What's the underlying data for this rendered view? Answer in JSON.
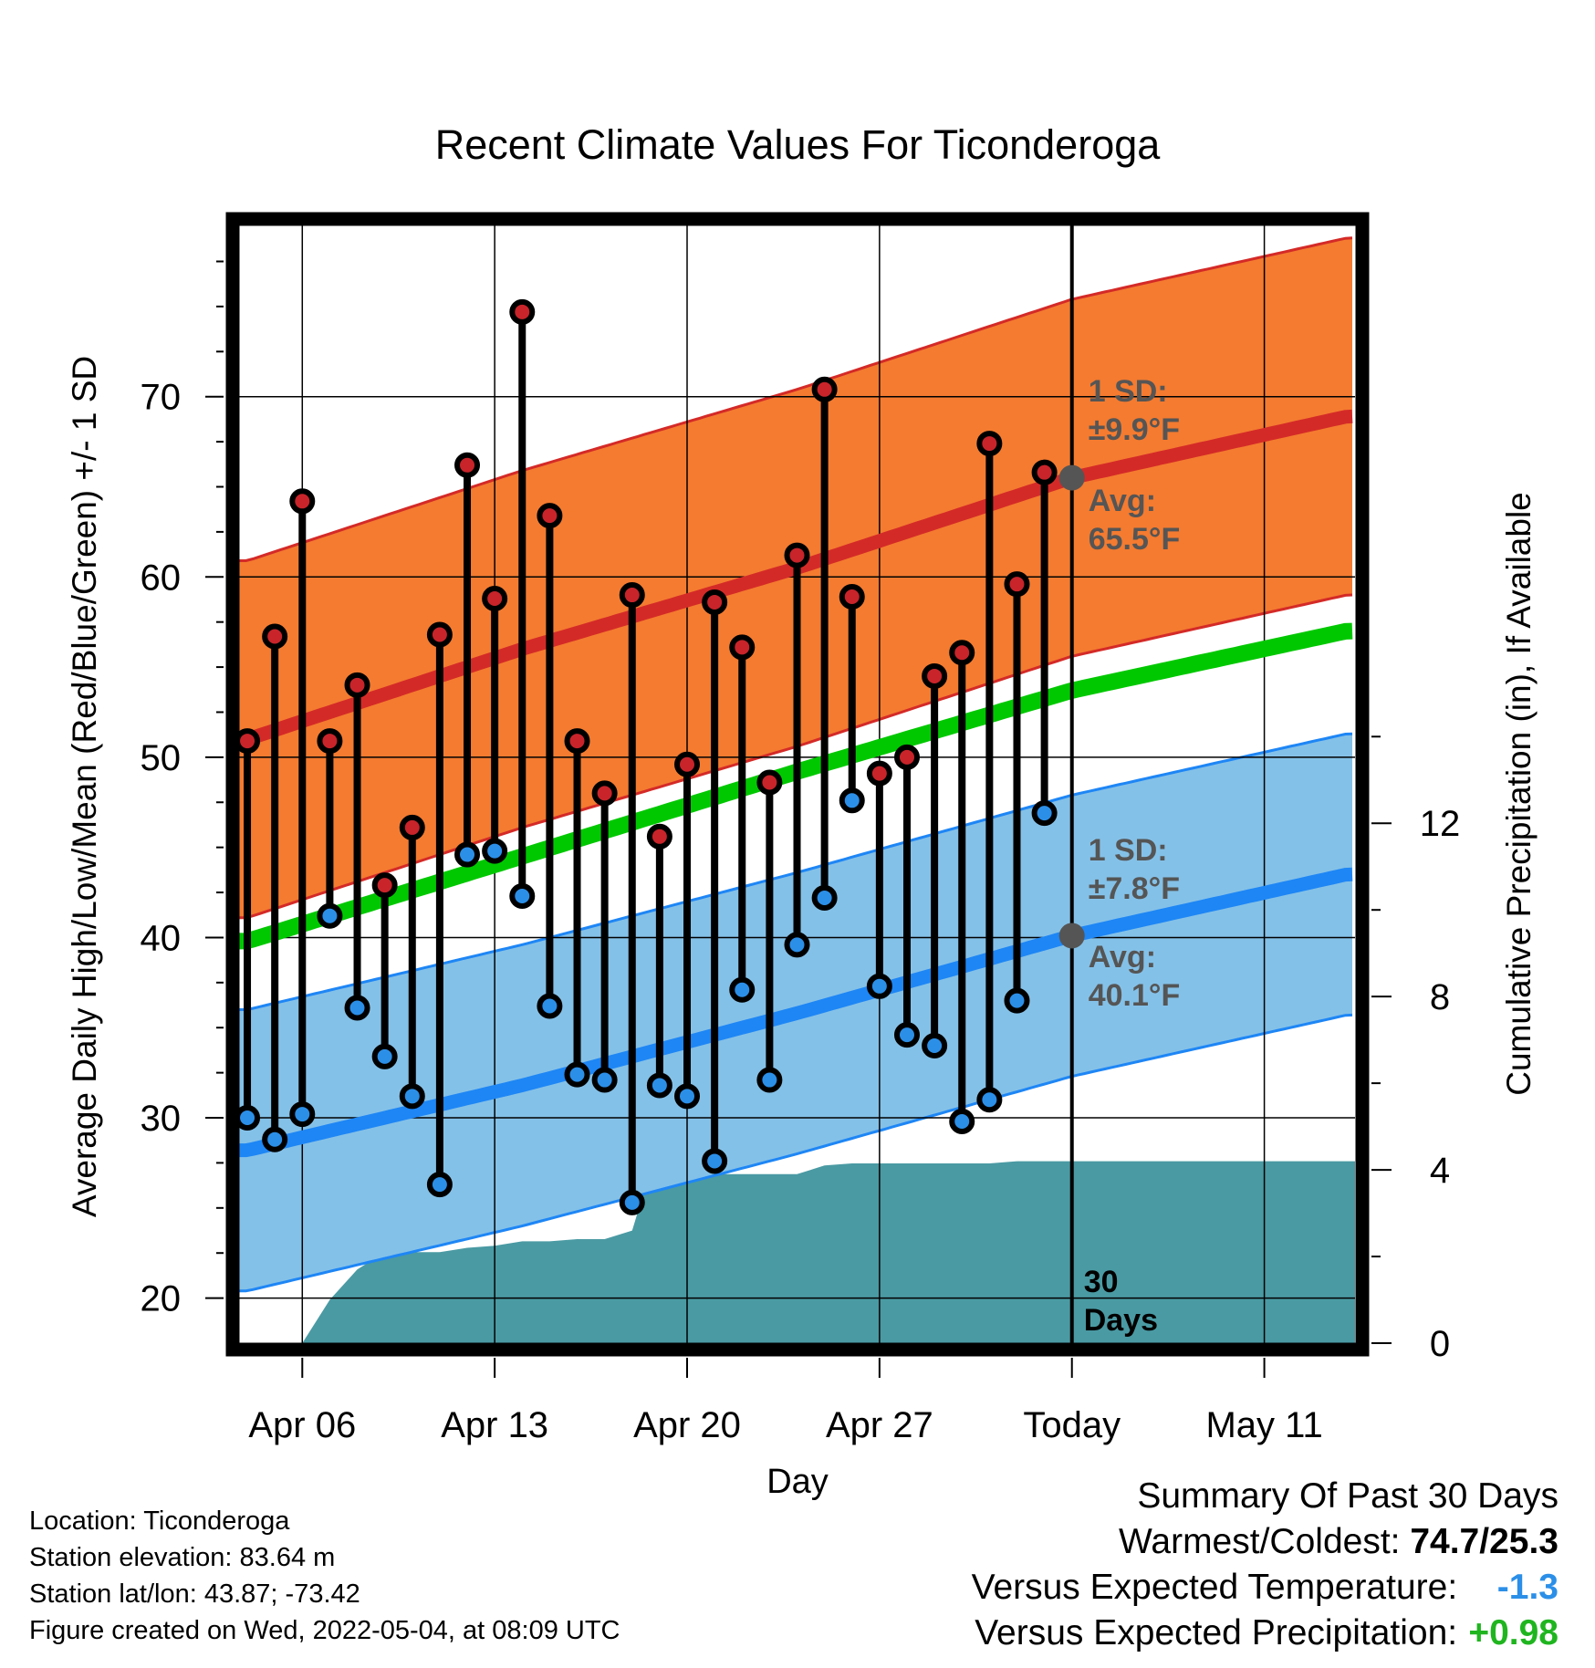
{
  "chart_data": {
    "type": "line",
    "title": "Recent Climate Values For Ticonderoga",
    "xlabel": "Day",
    "ylabel": "Average Daily High/Low/Mean (Red/Blue/Green) +/- 1 SD",
    "ylabel_right": "Cumulative Precipitation (in), If Available",
    "x_tick_labels": [
      "Apr 06",
      "Apr 13",
      "Apr 20",
      "Apr 27",
      "Today",
      "May 11"
    ],
    "x_tick_days": [
      2,
      9,
      16,
      23,
      30,
      37
    ],
    "x_range": [
      -0.3,
      40.3
    ],
    "ylim": [
      17.5,
      79.5
    ],
    "y_ticks": [
      20,
      30,
      40,
      50,
      60,
      70
    ],
    "y_right_ticks": [
      0,
      4,
      8,
      12
    ],
    "y_right_range": [
      0,
      25.8
    ],
    "grid": true,
    "colors": {
      "high_band": "#f47b30",
      "high_line": "#d42a27",
      "low_band": "#84c1e8",
      "low_line": "#1e86f5",
      "mean_line": "#00c800",
      "precip": "#4a9aa3",
      "high_marker": "#c8242a",
      "low_marker": "#2b8fe8",
      "label_gray": "#555555"
    },
    "normal_high": {
      "days": [
        0,
        10,
        20,
        30,
        40
      ],
      "values": [
        51.0,
        56.0,
        60.5,
        65.5,
        68.9
      ]
    },
    "normal_high_sd": 9.9,
    "normal_low": {
      "days": [
        0,
        10,
        20,
        30,
        40
      ],
      "values": [
        28.2,
        31.8,
        35.8,
        40.1,
        43.5
      ]
    },
    "normal_low_sd": 7.8,
    "normal_mean": {
      "days": [
        0,
        10,
        20,
        30,
        40
      ],
      "values": [
        39.8,
        44.5,
        49.2,
        53.7,
        57.0
      ]
    },
    "daily": {
      "days": [
        0,
        1,
        2,
        3,
        4,
        5,
        6,
        7,
        8,
        9,
        10,
        11,
        12,
        13,
        14,
        15,
        16,
        17,
        18,
        19,
        20,
        21,
        22,
        23,
        24,
        25,
        26,
        27,
        28,
        29
      ],
      "high": [
        50.9,
        56.7,
        64.2,
        50.9,
        54.0,
        42.9,
        46.1,
        56.8,
        66.2,
        58.8,
        74.7,
        63.4,
        50.9,
        48.0,
        59.0,
        45.6,
        49.6,
        58.6,
        56.1,
        48.6,
        61.2,
        70.4,
        58.9,
        49.1,
        50.0,
        54.5,
        55.8,
        67.4,
        59.6,
        65.8
      ],
      "low": [
        30.0,
        28.8,
        30.2,
        41.2,
        36.1,
        33.4,
        31.2,
        26.3,
        44.6,
        44.8,
        42.3,
        36.2,
        32.4,
        32.1,
        25.3,
        31.8,
        31.2,
        27.6,
        37.1,
        32.1,
        39.6,
        42.2,
        47.6,
        37.3,
        34.6,
        34.0,
        29.8,
        31.0,
        36.5,
        46.9
      ]
    },
    "precip": {
      "days": [
        0,
        1,
        2,
        3,
        4,
        5,
        6,
        7,
        8,
        9,
        10,
        11,
        12,
        13,
        14,
        14.6,
        15,
        16,
        17,
        18,
        19,
        20,
        21,
        22,
        23,
        24,
        25,
        26,
        27,
        28,
        29,
        30,
        40
      ],
      "values": [
        0,
        0,
        0,
        1.0,
        1.7,
        2.1,
        2.1,
        2.1,
        2.2,
        2.25,
        2.35,
        2.35,
        2.4,
        2.4,
        2.6,
        3.85,
        3.85,
        3.85,
        3.9,
        3.9,
        3.9,
        3.9,
        4.1,
        4.15,
        4.15,
        4.15,
        4.15,
        4.15,
        4.15,
        4.2,
        4.2,
        4.2,
        4.2
      ]
    },
    "annotations": {
      "high_sd_label": "1 SD:",
      "high_sd_value": "±9.9°F",
      "high_avg_label": "Avg:",
      "high_avg_value": "65.5°F",
      "high_avg_point": 65.5,
      "low_sd_label": "1 SD:",
      "low_sd_value": "±7.8°F",
      "low_avg_label": "Avg:",
      "low_avg_value": "40.1°F",
      "low_avg_point": 40.1,
      "days_count": "30",
      "days_word": "Days"
    }
  },
  "footer": {
    "location": "Location: Ticonderoga",
    "elevation": "Station elevation: 83.64 m",
    "latlon": "Station lat/lon: 43.87; -73.42",
    "created": "Figure created on Wed, 2022-05-04, at 08:09 UTC"
  },
  "summary": {
    "title": "Summary Of Past 30 Days",
    "warmest_label": "Warmest/Coldest:",
    "warmest_value": "74.7/25.3",
    "temp_label": "Versus Expected Temperature:",
    "temp_value": "-1.3",
    "temp_color": "#2b8fe8",
    "precip_label": "Versus Expected Precipitation:",
    "precip_value": "+0.98",
    "precip_color": "#1fb51f"
  }
}
